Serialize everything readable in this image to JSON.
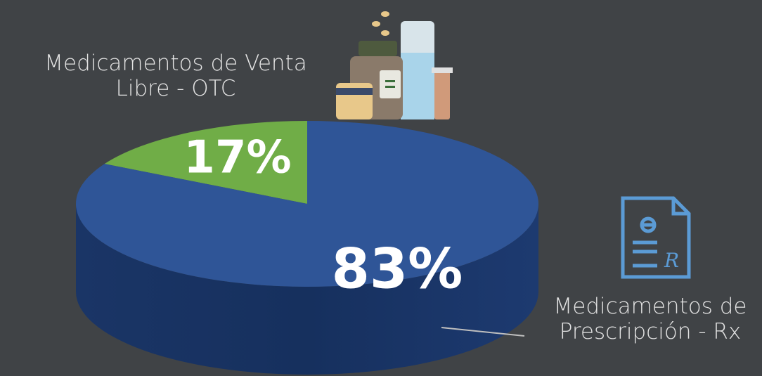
{
  "chart_data": {
    "type": "pie3d",
    "categories": [
      "Medicamentos de Venta Libre - OTC",
      "Medicamentos de Prescripción - Rx"
    ],
    "values": [
      17,
      83
    ],
    "value_labels": [
      "17%",
      "83%"
    ],
    "colors": [
      "#70ad47",
      "#2f5597"
    ]
  }
}
